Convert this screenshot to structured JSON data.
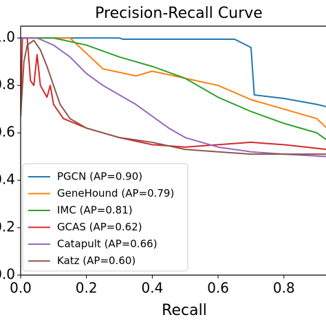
{
  "chart_data": {
    "type": "line",
    "title": "Precision-Recall Curve",
    "x_label": "Recall",
    "xlim": [
      0,
      0.93
    ],
    "ylim": [
      0,
      1.05
    ],
    "xticks": [
      {
        "value": 0,
        "label": "0.0"
      },
      0.2,
      0.4,
      0.6,
      0.8
    ],
    "yticks": [
      {
        "value": 0,
        "label": "0.0"
      },
      0.2,
      0.4,
      0.6,
      0.8,
      {
        "value": 1,
        "label": "1.0"
      }
    ],
    "legend": "lower left",
    "series": [
      {
        "name": "PGCN (AP=0.90)",
        "color": "#1f77b4",
        "x": [
          0,
          0.3,
          0.31,
          0.65,
          0.7,
          0.71,
          0.8,
          0.9,
          0.93
        ],
        "values": [
          1,
          1,
          0.995,
          0.995,
          0.96,
          0.76,
          0.745,
          0.72,
          0.71
        ]
      },
      {
        "name": "GeneHound (AP=0.79)",
        "color": "#ff7f0e",
        "x": [
          0,
          0.005,
          0.15,
          0.25,
          0.35,
          0.4,
          0.5,
          0.6,
          0.7,
          0.8,
          0.9,
          0.93
        ],
        "values": [
          0.67,
          1,
          1,
          0.87,
          0.84,
          0.86,
          0.83,
          0.8,
          0.74,
          0.7,
          0.66,
          0.62
        ]
      },
      {
        "name": "IMC (AP=0.81)",
        "color": "#2ca02c",
        "x": [
          0,
          0.1,
          0.2,
          0.3,
          0.4,
          0.5,
          0.6,
          0.7,
          0.8,
          0.9,
          0.93
        ],
        "values": [
          1,
          1,
          0.97,
          0.92,
          0.88,
          0.83,
          0.75,
          0.69,
          0.64,
          0.6,
          0.57
        ]
      },
      {
        "name": "GCAS (AP=0.62)",
        "color": "#d62728",
        "x": [
          0,
          0.005,
          0.02,
          0.03,
          0.04,
          0.05,
          0.06,
          0.08,
          0.09,
          0.1,
          0.12,
          0.13,
          0.2,
          0.3,
          0.4,
          0.5,
          0.6,
          0.7,
          0.8,
          0.93
        ],
        "values": [
          0.67,
          1,
          1,
          0.82,
          0.8,
          0.93,
          0.8,
          0.75,
          0.8,
          0.72,
          0.68,
          0.66,
          0.62,
          0.58,
          0.55,
          0.54,
          0.55,
          0.56,
          0.55,
          0.53
        ]
      },
      {
        "name": "Catapult (AP=0.66)",
        "color": "#9467bd",
        "x": [
          0,
          0.05,
          0.1,
          0.15,
          0.2,
          0.25,
          0.3,
          0.35,
          0.4,
          0.45,
          0.5,
          0.6,
          0.7,
          0.8,
          0.93
        ],
        "values": [
          1,
          1,
          0.97,
          0.92,
          0.85,
          0.8,
          0.76,
          0.72,
          0.67,
          0.62,
          0.58,
          0.54,
          0.52,
          0.51,
          0.5
        ]
      },
      {
        "name": "Katz (AP=0.60)",
        "color": "#8c564b",
        "x": [
          0,
          0.01,
          0.02,
          0.04,
          0.06,
          0.08,
          0.1,
          0.12,
          0.15,
          0.2,
          0.3,
          0.4,
          0.5,
          0.6,
          0.7,
          0.93
        ],
        "values": [
          0.67,
          0.9,
          0.97,
          0.99,
          0.95,
          0.88,
          0.8,
          0.72,
          0.66,
          0.62,
          0.58,
          0.56,
          0.53,
          0.52,
          0.51,
          0.51
        ]
      }
    ]
  }
}
